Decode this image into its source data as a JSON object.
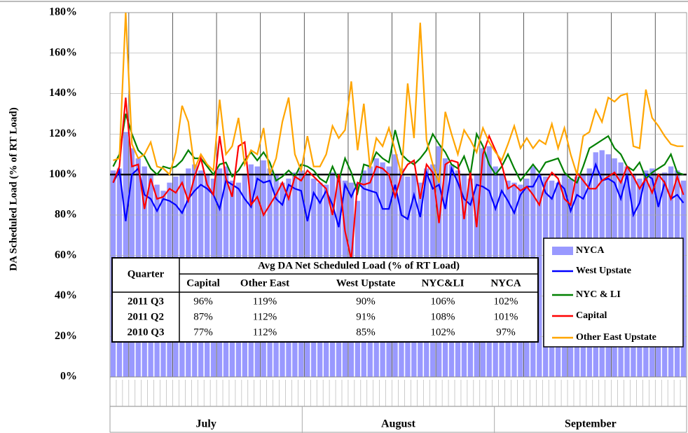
{
  "chart_data": {
    "type": "bar_line",
    "y_label": "DA Scheduled Load (% of RT Load)",
    "ylim": [
      0,
      180
    ],
    "yticks": [
      {
        "value": 0,
        "label": "0%"
      },
      {
        "value": 20,
        "label": "20%"
      },
      {
        "value": 40,
        "label": "40%"
      },
      {
        "value": 60,
        "label": "60%"
      },
      {
        "value": 80,
        "label": "80%"
      },
      {
        "value": 100,
        "label": "100%"
      },
      {
        "value": 120,
        "label": "120%"
      },
      {
        "value": 140,
        "label": "140%"
      },
      {
        "value": 160,
        "label": "160%"
      },
      {
        "value": 180,
        "label": "180%"
      }
    ],
    "reference_line": 100,
    "months": [
      "July",
      "August",
      "September"
    ],
    "categories": [
      null,
      null,
      null,
      null,
      null,
      null,
      null,
      null,
      null,
      null,
      null,
      null,
      null,
      null,
      null,
      null,
      null,
      null,
      null,
      null,
      null,
      null,
      null,
      null,
      null,
      null,
      null,
      null,
      null,
      null,
      null,
      null,
      null,
      null,
      null,
      null,
      null,
      null,
      null,
      null,
      null,
      null,
      null,
      null,
      null,
      null,
      null,
      null,
      null,
      null,
      null,
      null,
      null,
      null,
      null,
      null,
      null,
      null,
      null,
      null,
      null,
      null,
      null,
      null,
      null,
      null,
      null,
      null,
      null,
      null,
      null,
      null,
      null,
      null,
      null,
      null,
      null,
      null,
      null,
      null,
      null,
      null,
      null,
      null,
      null,
      null,
      null,
      null,
      null,
      null,
      null,
      null
    ],
    "series": [
      {
        "name": "NYCA",
        "type": "bar",
        "color": "#9999ff",
        "values": [
          102,
          103,
          121,
          113,
          108,
          104,
          100,
          95,
          92,
          96,
          99,
          100,
          103,
          105,
          102,
          100,
          98,
          103,
          104,
          97,
          96,
          100,
          105,
          104,
          107,
          103,
          100,
          96,
          98,
          101,
          102,
          100,
          98,
          96,
          95,
          101,
          99,
          97,
          96,
          87,
          102,
          104,
          108,
          106,
          104,
          110,
          103,
          99,
          100,
          96,
          103,
          105,
          114,
          108,
          105,
          102,
          100,
          98,
          100,
          113,
          114,
          104,
          100,
          97,
          96,
          95,
          98,
          104,
          100,
          99,
          97,
          96,
          100,
          98,
          99,
          100,
          103,
          111,
          112,
          110,
          108,
          106,
          104,
          100,
          98,
          102,
          103,
          100,
          101,
          104,
          102,
          97
        ]
      },
      {
        "name": "West Upstate",
        "type": "line",
        "color": "#0000ff",
        "values": [
          96,
          102,
          77,
          100,
          103,
          90,
          88,
          82,
          88,
          87,
          85,
          81,
          88,
          92,
          95,
          93,
          90,
          83,
          97,
          95,
          93,
          88,
          84,
          98,
          96,
          97,
          88,
          85,
          95,
          93,
          92,
          77,
          91,
          86,
          92,
          85,
          74,
          95,
          89,
          96,
          93,
          92,
          91,
          83,
          83,
          95,
          80,
          78,
          90,
          79,
          101,
          93,
          95,
          83,
          103,
          96,
          88,
          85,
          95,
          94,
          92,
          83,
          92,
          87,
          81,
          90,
          94,
          94,
          100,
          91,
          88,
          96,
          93,
          82,
          90,
          88,
          95,
          105,
          97,
          98,
          96,
          88,
          100,
          80,
          86,
          100,
          98,
          84,
          96,
          88,
          90,
          86
        ]
      },
      {
        "name": "NYC & LI",
        "type": "line",
        "color": "#008000",
        "values": [
          104,
          110,
          130,
          120,
          112,
          109,
          103,
          100,
          104,
          103,
          104,
          107,
          112,
          108,
          108,
          104,
          100,
          105,
          106,
          99,
          102,
          107,
          111,
          107,
          111,
          106,
          97,
          99,
          102,
          99,
          105,
          104,
          102,
          98,
          96,
          104,
          97,
          108,
          101,
          91,
          105,
          104,
          111,
          108,
          106,
          122,
          110,
          107,
          105,
          108,
          112,
          120,
          115,
          111,
          105,
          103,
          109,
          100,
          120,
          114,
          105,
          100,
          104,
          110,
          103,
          97,
          101,
          105,
          101,
          106,
          107,
          108,
          101,
          98,
          96,
          104,
          113,
          115,
          117,
          119,
          113,
          110,
          104,
          102,
          106,
          98,
          101,
          103,
          105,
          110,
          101,
          100
        ]
      },
      {
        "name": "Capital",
        "type": "line",
        "color": "#ff0000",
        "values": [
          96,
          104,
          138,
          104,
          105,
          83,
          98,
          88,
          89,
          93,
          91,
          96,
          87,
          99,
          108,
          95,
          90,
          119,
          98,
          89,
          114,
          116,
          85,
          89,
          80,
          85,
          90,
          96,
          88,
          99,
          97,
          102,
          99,
          96,
          93,
          80,
          100,
          72,
          58,
          96,
          95,
          96,
          104,
          103,
          100,
          89,
          100,
          105,
          107,
          88,
          105,
          101,
          76,
          105,
          107,
          106,
          78,
          101,
          74,
          110,
          119,
          112,
          105,
          93,
          95,
          92,
          94,
          90,
          85,
          96,
          101,
          98,
          88,
          85,
          101,
          97,
          93,
          93,
          97,
          99,
          101,
          96,
          104,
          99,
          93,
          98,
          91,
          100,
          96,
          88,
          99,
          90
        ]
      },
      {
        "name": "Other East Upstate",
        "type": "line",
        "color": "#ffa500",
        "values": [
          107,
          108,
          180,
          115,
          108,
          110,
          116,
          104,
          103,
          100,
          111,
          134,
          126,
          103,
          110,
          105,
          102,
          137,
          110,
          114,
          128,
          105,
          112,
          110,
          123,
          100,
          108,
          126,
          138,
          110,
          102,
          119,
          104,
          104,
          110,
          124,
          118,
          122,
          146,
          112,
          135,
          103,
          118,
          114,
          123,
          112,
          100,
          145,
          118,
          175,
          117,
          105,
          96,
          131,
          120,
          110,
          122,
          117,
          111,
          123,
          116,
          111,
          107,
          115,
          124,
          113,
          118,
          113,
          117,
          115,
          125,
          113,
          123,
          110,
          100,
          119,
          121,
          132,
          126,
          138,
          136,
          139,
          140,
          114,
          113,
          142,
          128,
          124,
          119,
          115,
          114,
          114
        ]
      }
    ],
    "table": {
      "header": "Quarter",
      "group_header": "Avg DA Net Scheduled Load (% of RT Load)",
      "columns": [
        "Capital",
        "Other East",
        "West Upstate",
        "NYC&LI",
        "NYCA"
      ],
      "rows": [
        [
          "2011 Q3",
          "96%",
          "119%",
          "90%",
          "106%",
          "102%"
        ],
        [
          "2011 Q2",
          "87%",
          "112%",
          "91%",
          "108%",
          "101%"
        ],
        [
          "2010 Q3",
          "77%",
          "112%",
          "85%",
          "102%",
          "97%"
        ]
      ]
    }
  }
}
